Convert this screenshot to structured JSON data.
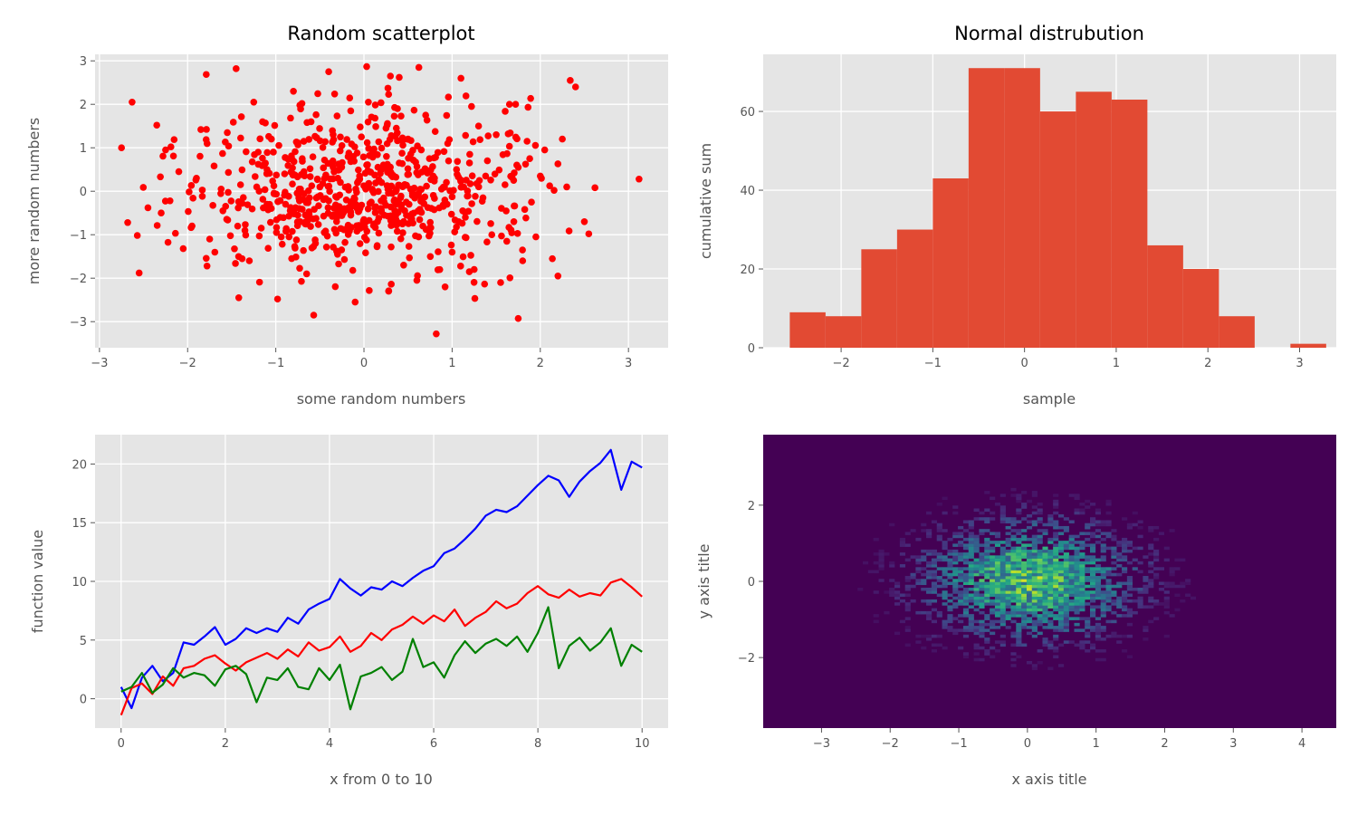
{
  "chart_data": [
    {
      "type": "scatter",
      "title": "Random scatterplot",
      "xlabel": "some random numbers",
      "ylabel": "more random numbers",
      "xlim": [
        -3.05,
        3.45
      ],
      "ylim": [
        -3.6,
        3.15
      ],
      "xticks": [
        -3,
        -2,
        -1,
        0,
        1,
        2,
        3
      ],
      "yticks": [
        -3,
        -2,
        -1,
        0,
        1,
        2,
        3
      ],
      "grid": true,
      "color": "#ff0000",
      "points": [
        [
          -2.75,
          1.0
        ],
        [
          -2.68,
          -0.72
        ],
        [
          -2.63,
          2.05
        ],
        [
          -2.55,
          -1.88
        ],
        [
          -2.45,
          -0.38
        ],
        [
          -2.35,
          1.52
        ],
        [
          -2.25,
          0.95
        ],
        [
          -2.2,
          -0.22
        ],
        [
          -2.1,
          0.45
        ],
        [
          -2.05,
          -1.32
        ],
        [
          -1.95,
          -0.8
        ],
        [
          -1.85,
          1.42
        ],
        [
          -1.78,
          -1.72
        ],
        [
          -1.7,
          0.58
        ],
        [
          -1.6,
          -0.45
        ],
        [
          -1.55,
          1.35
        ],
        [
          -1.45,
          2.82
        ],
        [
          -1.42,
          -2.45
        ],
        [
          -1.4,
          0.15
        ],
        [
          -1.3,
          -1.6
        ],
        [
          -1.2,
          0.9
        ],
        [
          -1.1,
          -0.3
        ],
        [
          -1.05,
          1.2
        ],
        [
          -0.98,
          -2.48
        ],
        [
          -0.9,
          0.4
        ],
        [
          -0.85,
          -1.05
        ],
        [
          -0.8,
          2.3
        ],
        [
          -0.75,
          -0.55
        ],
        [
          -0.7,
          0.75
        ],
        [
          -0.65,
          -1.9
        ],
        [
          -0.6,
          1.6
        ],
        [
          -0.57,
          -2.85
        ],
        [
          -0.5,
          0.1
        ],
        [
          -0.45,
          -0.95
        ],
        [
          -0.4,
          2.75
        ],
        [
          -0.35,
          0.55
        ],
        [
          -0.3,
          -1.45
        ],
        [
          -0.25,
          1.05
        ],
        [
          -0.2,
          -0.2
        ],
        [
          -0.15,
          1.85
        ],
        [
          -0.1,
          -2.55
        ],
        [
          -0.05,
          0.35
        ],
        [
          0.0,
          -0.65
        ],
        [
          0.05,
          2.05
        ],
        [
          0.1,
          0.8
        ],
        [
          0.15,
          -1.25
        ],
        [
          0.2,
          0.2
        ],
        [
          0.25,
          1.45
        ],
        [
          0.3,
          2.65
        ],
        [
          0.35,
          -0.45
        ],
        [
          0.4,
          0.65
        ],
        [
          0.45,
          -1.7
        ],
        [
          0.5,
          1.2
        ],
        [
          0.55,
          -0.1
        ],
        [
          0.6,
          -2.05
        ],
        [
          0.65,
          0.95
        ],
        [
          0.7,
          1.75
        ],
        [
          0.75,
          -0.85
        ],
        [
          0.8,
          0.3
        ],
        [
          0.82,
          -3.28
        ],
        [
          0.9,
          -0.35
        ],
        [
          0.95,
          1.1
        ],
        [
          1.0,
          -1.4
        ],
        [
          1.05,
          0.5
        ],
        [
          1.1,
          2.6
        ],
        [
          1.15,
          -0.6
        ],
        [
          1.2,
          0.85
        ],
        [
          1.25,
          -1.8
        ],
        [
          1.3,
          1.5
        ],
        [
          1.35,
          -0.15
        ],
        [
          1.4,
          0.7
        ],
        [
          1.45,
          -1.0
        ],
        [
          1.5,
          1.3
        ],
        [
          1.55,
          -2.1
        ],
        [
          1.6,
          0.15
        ],
        [
          1.65,
          2.0
        ],
        [
          1.7,
          -0.7
        ],
        [
          1.75,
          0.55
        ],
        [
          1.8,
          -1.6
        ],
        [
          1.85,
          1.15
        ],
        [
          1.9,
          -0.25
        ],
        [
          1.95,
          -1.05
        ],
        [
          2.0,
          0.35
        ],
        [
          2.05,
          0.95
        ],
        [
          2.2,
          -1.95
        ],
        [
          2.25,
          1.2
        ],
        [
          2.3,
          0.1
        ],
        [
          2.4,
          2.4
        ],
        [
          2.5,
          -0.7
        ],
        [
          2.55,
          -0.98
        ],
        [
          2.62,
          0.08
        ],
        [
          3.12,
          0.28
        ],
        [
          -2.3,
          -0.5
        ],
        [
          -1.9,
          0.3
        ],
        [
          -1.35,
          -0.9
        ],
        [
          -1.15,
          1.6
        ],
        [
          -0.95,
          -0.6
        ],
        [
          -0.55,
          -1.2
        ],
        [
          -0.35,
          1.3
        ],
        [
          -0.12,
          0.8
        ],
        [
          0.12,
          -0.75
        ],
        [
          0.38,
          1.9
        ],
        [
          0.62,
          -1.05
        ],
        [
          0.88,
          0.05
        ],
        [
          1.12,
          -0.45
        ],
        [
          1.38,
          0.35
        ],
        [
          1.62,
          -1.15
        ],
        [
          1.88,
          0.75
        ],
        [
          -0.72,
          0.05
        ],
        [
          0.02,
          0.05
        ],
        [
          0.48,
          -0.25
        ],
        [
          -0.28,
          -0.35
        ],
        [
          0.72,
          0.42
        ],
        [
          -1.62,
          0.05
        ],
        [
          1.22,
          1.95
        ],
        [
          -0.82,
          -1.55
        ],
        [
          0.28,
          -2.3
        ],
        [
          -1.25,
          2.05
        ],
        [
          1.72,
          2.0
        ],
        [
          -1.75,
          -1.1
        ],
        [
          0.92,
          -2.2
        ]
      ]
    },
    {
      "type": "bar",
      "title": "Normal distrubution",
      "xlabel": "sample",
      "ylabel": "cumulative sum",
      "xlim": [
        -2.85,
        3.4
      ],
      "ylim": [
        0,
        74.5
      ],
      "xticks": [
        -2,
        -1,
        0,
        1,
        2,
        3
      ],
      "yticks": [
        0,
        20,
        40,
        60
      ],
      "grid": true,
      "color": "#e24a33",
      "bin_edges": [
        -2.56,
        -2.17,
        -1.78,
        -1.39,
        -1.0,
        -0.61,
        -0.22,
        0.17,
        0.56,
        0.95,
        1.34,
        1.73,
        2.12,
        2.51,
        2.9,
        3.29
      ],
      "values": [
        9,
        8,
        25,
        30,
        43,
        71,
        71,
        60,
        65,
        63,
        26,
        20,
        8,
        0,
        1
      ]
    },
    {
      "type": "line",
      "title": "",
      "xlabel": "x from 0 to 10",
      "ylabel": "function value",
      "xlim": [
        -0.5,
        10.5
      ],
      "ylim": [
        -2.5,
        22.5
      ],
      "xticks": [
        0,
        2,
        4,
        6,
        8,
        10
      ],
      "yticks": [
        0,
        5,
        10,
        15,
        20
      ],
      "grid": true,
      "series": [
        {
          "color": "#0000ff",
          "points": [
            [
              0,
              1.0
            ],
            [
              0.2,
              -0.8
            ],
            [
              0.4,
              1.8
            ],
            [
              0.6,
              2.8
            ],
            [
              0.8,
              1.5
            ],
            [
              1.0,
              2.2
            ],
            [
              1.2,
              4.8
            ],
            [
              1.4,
              4.6
            ],
            [
              1.6,
              5.3
            ],
            [
              1.8,
              6.1
            ],
            [
              2.0,
              4.6
            ],
            [
              2.2,
              5.1
            ],
            [
              2.4,
              6.0
            ],
            [
              2.6,
              5.6
            ],
            [
              2.8,
              6.0
            ],
            [
              3.0,
              5.7
            ],
            [
              3.2,
              6.9
            ],
            [
              3.4,
              6.4
            ],
            [
              3.6,
              7.6
            ],
            [
              3.8,
              8.1
            ],
            [
              4.0,
              8.5
            ],
            [
              4.2,
              10.2
            ],
            [
              4.4,
              9.4
            ],
            [
              4.6,
              8.8
            ],
            [
              4.8,
              9.5
            ],
            [
              5.0,
              9.3
            ],
            [
              5.2,
              10.0
            ],
            [
              5.4,
              9.6
            ],
            [
              5.6,
              10.3
            ],
            [
              5.8,
              10.9
            ],
            [
              6.0,
              11.3
            ],
            [
              6.2,
              12.4
            ],
            [
              6.4,
              12.8
            ],
            [
              6.6,
              13.6
            ],
            [
              6.8,
              14.5
            ],
            [
              7.0,
              15.6
            ],
            [
              7.2,
              16.1
            ],
            [
              7.4,
              15.9
            ],
            [
              7.6,
              16.4
            ],
            [
              7.8,
              17.3
            ],
            [
              8.0,
              18.2
            ],
            [
              8.2,
              19.0
            ],
            [
              8.4,
              18.6
            ],
            [
              8.6,
              17.2
            ],
            [
              8.8,
              18.5
            ],
            [
              9.0,
              19.4
            ],
            [
              9.2,
              20.1
            ],
            [
              9.4,
              21.2
            ],
            [
              9.6,
              17.8
            ],
            [
              9.8,
              20.2
            ],
            [
              10.0,
              19.7
            ]
          ]
        },
        {
          "color": "#ff0000",
          "points": [
            [
              0,
              -1.4
            ],
            [
              0.2,
              0.9
            ],
            [
              0.4,
              1.3
            ],
            [
              0.6,
              0.4
            ],
            [
              0.8,
              1.9
            ],
            [
              1.0,
              1.1
            ],
            [
              1.2,
              2.6
            ],
            [
              1.4,
              2.8
            ],
            [
              1.6,
              3.4
            ],
            [
              1.8,
              3.7
            ],
            [
              2.0,
              3.0
            ],
            [
              2.2,
              2.4
            ],
            [
              2.4,
              3.1
            ],
            [
              2.6,
              3.5
            ],
            [
              2.8,
              3.9
            ],
            [
              3.0,
              3.4
            ],
            [
              3.2,
              4.2
            ],
            [
              3.4,
              3.6
            ],
            [
              3.6,
              4.8
            ],
            [
              3.8,
              4.1
            ],
            [
              4.0,
              4.4
            ],
            [
              4.2,
              5.3
            ],
            [
              4.4,
              4.0
            ],
            [
              4.6,
              4.5
            ],
            [
              4.8,
              5.6
            ],
            [
              5.0,
              5.0
            ],
            [
              5.2,
              5.9
            ],
            [
              5.4,
              6.3
            ],
            [
              5.6,
              7.0
            ],
            [
              5.8,
              6.4
            ],
            [
              6.0,
              7.1
            ],
            [
              6.2,
              6.6
            ],
            [
              6.4,
              7.6
            ],
            [
              6.6,
              6.2
            ],
            [
              6.8,
              6.9
            ],
            [
              7.0,
              7.4
            ],
            [
              7.2,
              8.3
            ],
            [
              7.4,
              7.7
            ],
            [
              7.6,
              8.1
            ],
            [
              7.8,
              9.0
            ],
            [
              8.0,
              9.6
            ],
            [
              8.2,
              8.9
            ],
            [
              8.4,
              8.6
            ],
            [
              8.6,
              9.3
            ],
            [
              8.8,
              8.7
            ],
            [
              9.0,
              9.0
            ],
            [
              9.2,
              8.8
            ],
            [
              9.4,
              9.9
            ],
            [
              9.6,
              10.2
            ],
            [
              9.8,
              9.5
            ],
            [
              10.0,
              8.7
            ]
          ]
        },
        {
          "color": "#008000",
          "points": [
            [
              0,
              0.6
            ],
            [
              0.2,
              1.0
            ],
            [
              0.4,
              2.2
            ],
            [
              0.6,
              0.5
            ],
            [
              0.8,
              1.2
            ],
            [
              1.0,
              2.6
            ],
            [
              1.2,
              1.8
            ],
            [
              1.4,
              2.2
            ],
            [
              1.6,
              2.0
            ],
            [
              1.8,
              1.1
            ],
            [
              2.0,
              2.5
            ],
            [
              2.2,
              2.8
            ],
            [
              2.4,
              2.1
            ],
            [
              2.6,
              -0.3
            ],
            [
              2.8,
              1.8
            ],
            [
              3.0,
              1.6
            ],
            [
              3.2,
              2.6
            ],
            [
              3.4,
              1.0
            ],
            [
              3.6,
              0.8
            ],
            [
              3.8,
              2.6
            ],
            [
              4.0,
              1.6
            ],
            [
              4.2,
              2.9
            ],
            [
              4.4,
              -0.9
            ],
            [
              4.6,
              1.9
            ],
            [
              4.8,
              2.2
            ],
            [
              5.0,
              2.7
            ],
            [
              5.2,
              1.6
            ],
            [
              5.4,
              2.3
            ],
            [
              5.6,
              5.1
            ],
            [
              5.8,
              2.7
            ],
            [
              6.0,
              3.1
            ],
            [
              6.2,
              1.8
            ],
            [
              6.4,
              3.7
            ],
            [
              6.6,
              4.9
            ],
            [
              6.8,
              3.9
            ],
            [
              7.0,
              4.7
            ],
            [
              7.2,
              5.1
            ],
            [
              7.4,
              4.5
            ],
            [
              7.6,
              5.3
            ],
            [
              7.8,
              4.0
            ],
            [
              8.0,
              5.6
            ],
            [
              8.2,
              7.8
            ],
            [
              8.4,
              2.6
            ],
            [
              8.6,
              4.5
            ],
            [
              8.8,
              5.2
            ],
            [
              9.0,
              4.1
            ],
            [
              9.2,
              4.8
            ],
            [
              9.4,
              6.0
            ],
            [
              9.6,
              2.8
            ],
            [
              9.8,
              4.6
            ],
            [
              10.0,
              4.0
            ]
          ]
        }
      ]
    },
    {
      "type": "heatmap",
      "title": "",
      "xlabel": "x axis title",
      "ylabel": "y axis title",
      "xlim": [
        -3.85,
        4.5
      ],
      "ylim": [
        -3.85,
        3.85
      ],
      "xticks": [
        -3,
        -2,
        -1,
        0,
        1,
        2,
        3,
        4
      ],
      "yticks": [
        -2,
        0,
        2
      ],
      "colormap": "viridis",
      "background": "#440154",
      "center": [
        0,
        0
      ],
      "spread": [
        1.0,
        1.0
      ]
    }
  ]
}
